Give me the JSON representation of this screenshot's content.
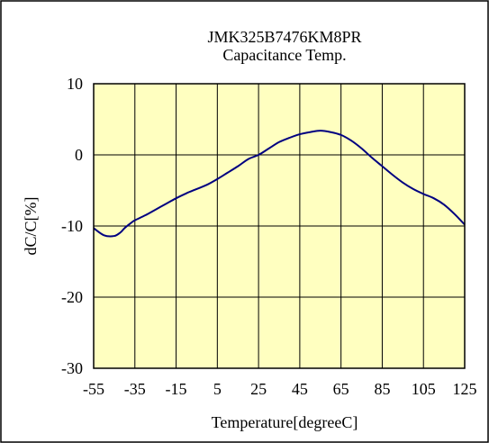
{
  "chart_data": {
    "type": "line",
    "title": "JMK325B7476KM8PR",
    "subtitle": "Capacitance Temp.",
    "xlabel": "Temperature[degreeC]",
    "ylabel": "dC/C[%]",
    "xlim": [
      -55,
      125
    ],
    "ylim": [
      -30,
      10
    ],
    "xticks": [
      -55,
      -35,
      -15,
      5,
      25,
      45,
      65,
      85,
      105,
      125
    ],
    "yticks": [
      -30,
      -20,
      -10,
      0,
      10
    ],
    "grid": true,
    "legend": "none",
    "colors": {
      "plot_background": "#ffffc0",
      "line": "#000080",
      "grid": "#000000",
      "frame": "#000000"
    },
    "series": [
      {
        "x": [
          -55,
          -50,
          -45,
          -42,
          -40,
          -37,
          -35,
          -30,
          -25,
          -20,
          -15,
          -10,
          -5,
          0,
          5,
          10,
          15,
          20,
          25,
          30,
          35,
          40,
          45,
          50,
          55,
          60,
          65,
          70,
          75,
          80,
          85,
          90,
          95,
          100,
          105,
          110,
          115,
          120,
          125
        ],
        "y": [
          -10.3,
          -11.3,
          -11.4,
          -10.9,
          -10.3,
          -9.6,
          -9.2,
          -8.5,
          -7.7,
          -6.9,
          -6.1,
          -5.4,
          -4.8,
          -4.2,
          -3.4,
          -2.5,
          -1.6,
          -0.6,
          0.0,
          0.9,
          1.8,
          2.4,
          2.9,
          3.2,
          3.4,
          3.2,
          2.8,
          2.0,
          0.9,
          -0.4,
          -1.6,
          -2.8,
          -3.9,
          -4.8,
          -5.5,
          -6.1,
          -7.0,
          -8.3,
          -9.8
        ]
      }
    ]
  }
}
